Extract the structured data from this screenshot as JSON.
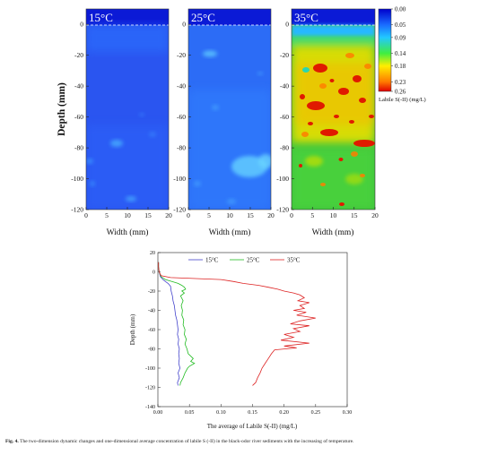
{
  "chart_data": [
    {
      "type": "heatmap",
      "panels": [
        {
          "label": "15°C"
        },
        {
          "label": "25°C"
        },
        {
          "label": "35°C"
        }
      ],
      "ylabel": "Depth (mm)",
      "xlabel": "Width (mm)",
      "y_ticks": [
        0,
        -20,
        -40,
        -60,
        -80,
        -100,
        -120
      ],
      "x_ticks": [
        0,
        5,
        10,
        15,
        20
      ],
      "xlim": [
        0,
        20
      ],
      "ylim": [
        -120,
        10
      ],
      "dashed_line_at": 0,
      "colorbar": {
        "ticks": [
          "0.00",
          "0.05",
          "0.09",
          "0.14",
          "0.18",
          "0.23",
          "0.26"
        ],
        "label": "Labile S(-II) (mg/L)",
        "range": [
          0,
          0.26
        ],
        "stops": [
          {
            "v": 0.0,
            "color": "#0000cc"
          },
          {
            "v": 0.05,
            "color": "#1a6cff"
          },
          {
            "v": 0.09,
            "color": "#22c8ff"
          },
          {
            "v": 0.14,
            "color": "#40ee40"
          },
          {
            "v": 0.18,
            "color": "#ffee00"
          },
          {
            "v": 0.23,
            "color": "#ff7a00"
          },
          {
            "v": 0.26,
            "color": "#e00000"
          }
        ]
      }
    },
    {
      "type": "line",
      "xlabel": "The average of Labile S(-II) (mg/L)",
      "ylabel": "Depth (mm)",
      "xlim": [
        0,
        0.3
      ],
      "ylim": [
        -140,
        20
      ],
      "x_ticks": [
        "0.00",
        "0.05",
        "0.10",
        "0.15",
        "0.20",
        "0.25",
        "0.30"
      ],
      "y_ticks": [
        20,
        0,
        -20,
        -40,
        -60,
        -80,
        -100,
        -120,
        -140
      ],
      "legend": "top-center",
      "series": [
        {
          "name": "15°C",
          "color": "#4444cc",
          "points": [
            [
              0.001,
              10
            ],
            [
              0.001,
              5
            ],
            [
              0.002,
              0
            ],
            [
              0.004,
              -5
            ],
            [
              0.008,
              -8
            ],
            [
              0.012,
              -10
            ],
            [
              0.016,
              -12
            ],
            [
              0.02,
              -15
            ],
            [
              0.021,
              -20
            ],
            [
              0.023,
              -25
            ],
            [
              0.024,
              -30
            ],
            [
              0.026,
              -35
            ],
            [
              0.027,
              -40
            ],
            [
              0.028,
              -45
            ],
            [
              0.03,
              -50
            ],
            [
              0.031,
              -55
            ],
            [
              0.032,
              -60
            ],
            [
              0.031,
              -65
            ],
            [
              0.033,
              -70
            ],
            [
              0.032,
              -75
            ],
            [
              0.034,
              -80
            ],
            [
              0.033,
              -85
            ],
            [
              0.034,
              -90
            ],
            [
              0.033,
              -95
            ],
            [
              0.035,
              -100
            ],
            [
              0.032,
              -105
            ],
            [
              0.034,
              -110
            ],
            [
              0.031,
              -115
            ],
            [
              0.032,
              -118
            ]
          ]
        },
        {
          "name": "25°C",
          "color": "#22bb22",
          "points": [
            [
              0.001,
              10
            ],
            [
              0.001,
              5
            ],
            [
              0.002,
              0
            ],
            [
              0.005,
              -5
            ],
            [
              0.012,
              -8
            ],
            [
              0.022,
              -10
            ],
            [
              0.032,
              -12
            ],
            [
              0.038,
              -14
            ],
            [
              0.042,
              -16
            ],
            [
              0.044,
              -18
            ],
            [
              0.038,
              -20
            ],
            [
              0.042,
              -22
            ],
            [
              0.036,
              -25
            ],
            [
              0.04,
              -30
            ],
            [
              0.037,
              -35
            ],
            [
              0.039,
              -40
            ],
            [
              0.038,
              -45
            ],
            [
              0.041,
              -50
            ],
            [
              0.04,
              -55
            ],
            [
              0.043,
              -60
            ],
            [
              0.042,
              -65
            ],
            [
              0.045,
              -70
            ],
            [
              0.043,
              -75
            ],
            [
              0.046,
              -80
            ],
            [
              0.048,
              -85
            ],
            [
              0.056,
              -90
            ],
            [
              0.052,
              -93
            ],
            [
              0.058,
              -95
            ],
            [
              0.05,
              -98
            ],
            [
              0.047,
              -100
            ],
            [
              0.043,
              -105
            ],
            [
              0.04,
              -110
            ],
            [
              0.036,
              -115
            ],
            [
              0.035,
              -118
            ]
          ]
        },
        {
          "name": "35°C",
          "color": "#dd2222",
          "points": [
            [
              0.001,
              10
            ],
            [
              0.001,
              5
            ],
            [
              0.002,
              0
            ],
            [
              0.005,
              -4
            ],
            [
              0.02,
              -6
            ],
            [
              0.06,
              -7
            ],
            [
              0.1,
              -8
            ],
            [
              0.12,
              -10
            ],
            [
              0.135,
              -12
            ],
            [
              0.16,
              -14
            ],
            [
              0.175,
              -16
            ],
            [
              0.19,
              -18
            ],
            [
              0.2,
              -20
            ],
            [
              0.215,
              -22
            ],
            [
              0.225,
              -24
            ],
            [
              0.232,
              -27
            ],
            [
              0.222,
              -30
            ],
            [
              0.24,
              -32
            ],
            [
              0.225,
              -35
            ],
            [
              0.232,
              -38
            ],
            [
              0.215,
              -40
            ],
            [
              0.235,
              -42
            ],
            [
              0.22,
              -45
            ],
            [
              0.25,
              -48
            ],
            [
              0.225,
              -51
            ],
            [
              0.21,
              -54
            ],
            [
              0.24,
              -56
            ],
            [
              0.215,
              -59
            ],
            [
              0.225,
              -62
            ],
            [
              0.2,
              -65
            ],
            [
              0.215,
              -68
            ],
            [
              0.195,
              -71
            ],
            [
              0.24,
              -74
            ],
            [
              0.2,
              -77
            ],
            [
              0.22,
              -79
            ],
            [
              0.185,
              -81
            ],
            [
              0.18,
              -85
            ],
            [
              0.175,
              -90
            ],
            [
              0.17,
              -95
            ],
            [
              0.165,
              -100
            ],
            [
              0.162,
              -105
            ],
            [
              0.158,
              -110
            ],
            [
              0.155,
              -115
            ],
            [
              0.15,
              -118
            ]
          ]
        }
      ]
    }
  ],
  "caption": {
    "bold": "Fig. 4.",
    "text": " The two-dimension dynamic changes and one-dimensional average concentration of labile S (-II) in the black-odor river sediments with the increasing of temperature."
  }
}
